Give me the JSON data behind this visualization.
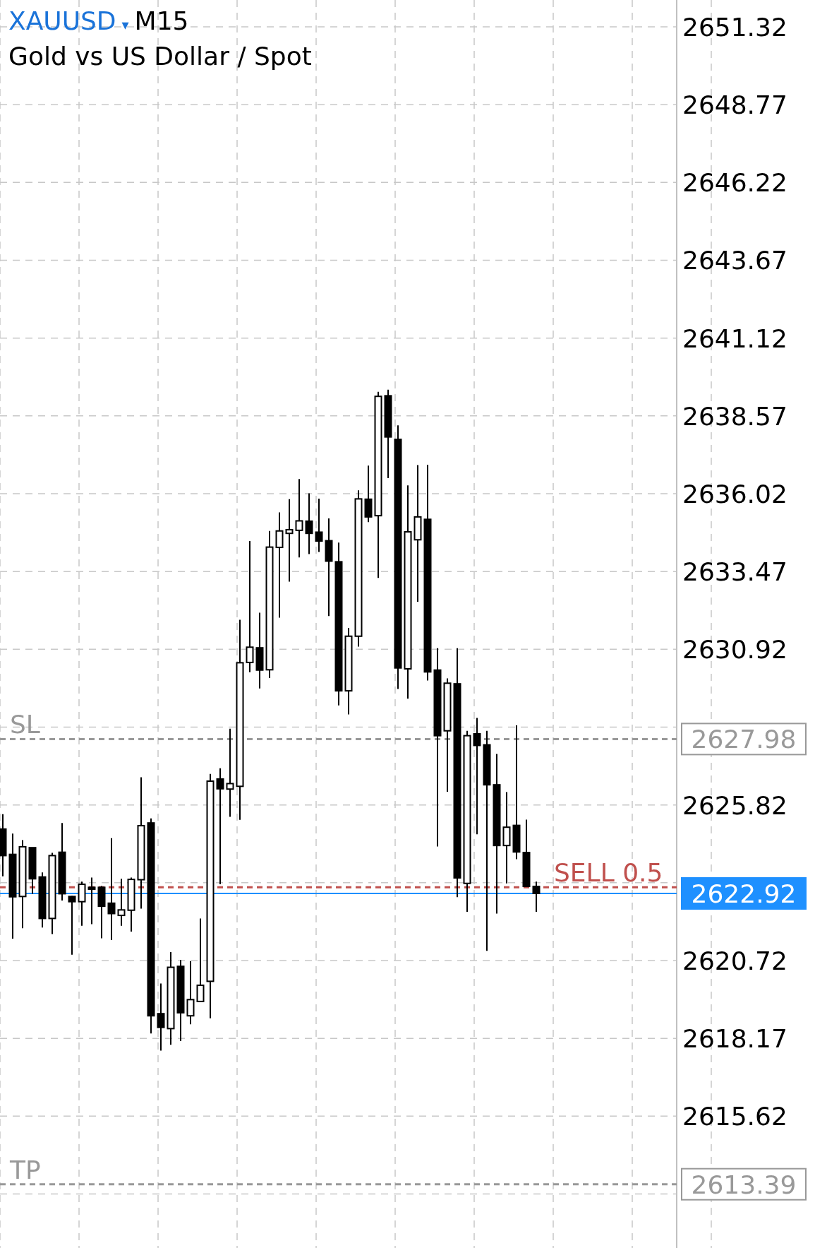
{
  "chart_data": {
    "type": "candlestick",
    "title": "XAUUSD ▾ M15",
    "subtitle": "Gold vs US Dollar / Spot",
    "categories": [
      null,
      null,
      null,
      null,
      null,
      null,
      null,
      null,
      null,
      null,
      null,
      null,
      null,
      null,
      null,
      null,
      null,
      null,
      null,
      null,
      null,
      null,
      null,
      null,
      null,
      null,
      null,
      null,
      null,
      null,
      null,
      null,
      null,
      null,
      null,
      null,
      null,
      null,
      null,
      null,
      null,
      null,
      null,
      null,
      null,
      null,
      null,
      null,
      null,
      null,
      null,
      null,
      null,
      null,
      null,
      null,
      null,
      null,
      null,
      null,
      null,
      null,
      null,
      null,
      null,
      null,
      null,
      null
    ],
    "ohlc": [
      [
        2625.03,
        2625.52,
        2623.48,
        2624.16
      ],
      [
        2624.2,
        2624.88,
        2621.44,
        2622.81
      ],
      [
        2622.82,
        2624.67,
        2621.78,
        2624.45
      ],
      [
        2624.42,
        2624.42,
        2622.91,
        2623.4
      ],
      [
        2623.46,
        2623.61,
        2621.8,
        2622.1
      ],
      [
        2622.1,
        2624.25,
        2621.59,
        2624.16
      ],
      [
        2624.27,
        2625.23,
        2622.69,
        2622.91
      ],
      [
        2622.82,
        2622.84,
        2620.91,
        2622.65
      ],
      [
        2622.65,
        2623.31,
        2621.86,
        2623.22
      ],
      [
        2623.12,
        2623.44,
        2621.91,
        2623.06
      ],
      [
        2623.12,
        2623.16,
        2621.45,
        2622.5
      ],
      [
        2622.6,
        2624.73,
        2621.39,
        2622.26
      ],
      [
        2622.2,
        2623.4,
        2621.86,
        2622.38
      ],
      [
        2622.37,
        2623.44,
        2621.67,
        2623.38
      ],
      [
        2623.37,
        2626.73,
        2622.42,
        2625.14
      ],
      [
        2625.23,
        2625.38,
        2618.33,
        2618.91
      ],
      [
        2618.98,
        2619.97,
        2617.77,
        2618.53
      ],
      [
        2618.49,
        2621.0,
        2617.96,
        2620.5
      ],
      [
        2620.53,
        2620.74,
        2618.08,
        2619.01
      ],
      [
        2618.91,
        2620.7,
        2618.63,
        2619.44
      ],
      [
        2619.38,
        2622.1,
        2619.38,
        2619.91
      ],
      [
        2620.04,
        2626.84,
        2618.83,
        2626.6
      ],
      [
        2626.67,
        2627.02,
        2623.22,
        2626.35
      ],
      [
        2626.34,
        2628.32,
        2625.43,
        2626.52
      ],
      [
        2626.43,
        2631.89,
        2625.33,
        2630.48
      ],
      [
        2630.49,
        2634.47,
        2630.17,
        2630.99
      ],
      [
        2630.97,
        2632.12,
        2629.64,
        2630.24
      ],
      [
        2630.25,
        2634.8,
        2629.98,
        2634.27
      ],
      [
        2634.26,
        2635.41,
        2631.96,
        2634.8
      ],
      [
        2634.72,
        2635.84,
        2633.14,
        2634.84
      ],
      [
        2634.82,
        2636.5,
        2633.93,
        2635.13
      ],
      [
        2635.12,
        2636.03,
        2634.04,
        2634.72
      ],
      [
        2634.76,
        2635.86,
        2634.11,
        2634.47
      ],
      [
        2634.48,
        2635.21,
        2632.01,
        2633.81
      ],
      [
        2633.79,
        2634.42,
        2629.08,
        2629.56
      ],
      [
        2629.56,
        2631.62,
        2628.79,
        2631.35
      ],
      [
        2631.35,
        2636.13,
        2631.01,
        2635.85
      ],
      [
        2635.84,
        2636.94,
        2635.09,
        2635.26
      ],
      [
        2635.3,
        2639.36,
        2633.26,
        2639.21
      ],
      [
        2639.23,
        2639.43,
        2636.53,
        2637.88
      ],
      [
        2637.8,
        2638.26,
        2629.62,
        2630.31
      ],
      [
        2630.28,
        2636.29,
        2629.3,
        2634.77
      ],
      [
        2634.51,
        2636.96,
        2632.48,
        2635.26
      ],
      [
        2635.18,
        2636.97,
        2629.9,
        2630.18
      ],
      [
        2630.24,
        2630.96,
        2624.46,
        2628.09
      ],
      [
        2628.25,
        2629.97,
        2626.25,
        2629.81
      ],
      [
        2629.79,
        2630.96,
        2622.8,
        2623.43
      ],
      [
        2623.25,
        2628.25,
        2622.32,
        2628.09
      ],
      [
        2628.15,
        2628.67,
        2624.86,
        2627.77
      ],
      [
        2627.79,
        2628.25,
        2621.04,
        2626.48
      ],
      [
        2626.48,
        2627.49,
        2622.26,
        2624.49
      ],
      [
        2624.49,
        2626.24,
        2623.25,
        2625.09
      ],
      [
        2625.15,
        2628.43,
        2624.04,
        2624.28
      ],
      [
        2624.26,
        2625.34,
        2623.15,
        2623.15
      ],
      [
        2623.15,
        2623.31,
        2622.32,
        2622.92
      ],
      null,
      null,
      null,
      null,
      null,
      null,
      null,
      null,
      null,
      null,
      null,
      null,
      null
    ],
    "ylim": [
      2611.3,
      2652.2
    ],
    "yticks": [
      2651.32,
      2648.77,
      2646.22,
      2643.67,
      2641.12,
      2638.57,
      2636.02,
      2633.47,
      2630.92,
      {
        "value": 2628.37,
        "label": null
      },
      2625.82,
      {
        "value": 2623.27,
        "label": null
      },
      2620.72,
      2618.17,
      2615.62,
      {
        "value": 2613.07,
        "label": null
      }
    ],
    "grid": true,
    "ref_lines": [
      {
        "axis": "y",
        "value": 2627.98,
        "label": "SL",
        "color": "#999999",
        "line_style": "dashed"
      },
      {
        "axis": "y",
        "value": 2613.39,
        "label": "TP",
        "color": "#999999",
        "line_style": "dashed"
      },
      {
        "axis": "y",
        "value": 2622.92,
        "label": null,
        "color": "#1e90ff",
        "line_style": "solid"
      },
      {
        "axis": "y",
        "value": 2623.12,
        "label": "SELL 0.5",
        "color": "#c0504d",
        "line_style": "dashed"
      }
    ],
    "annotations": [
      "2627.98",
      "2613.39",
      "2622.92"
    ]
  }
}
